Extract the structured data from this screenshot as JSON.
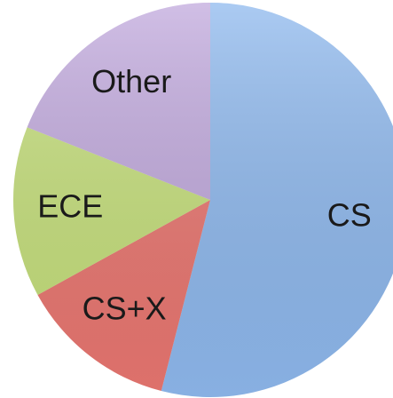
{
  "chart_data": {
    "type": "pie",
    "categories": [
      "CS",
      "CS+X",
      "ECE",
      "Other"
    ],
    "values": [
      54,
      13,
      14,
      19
    ],
    "colors": [
      "#8fb9ee",
      "#ea7771",
      "#c6e07c",
      "#c1a9dd"
    ]
  }
}
